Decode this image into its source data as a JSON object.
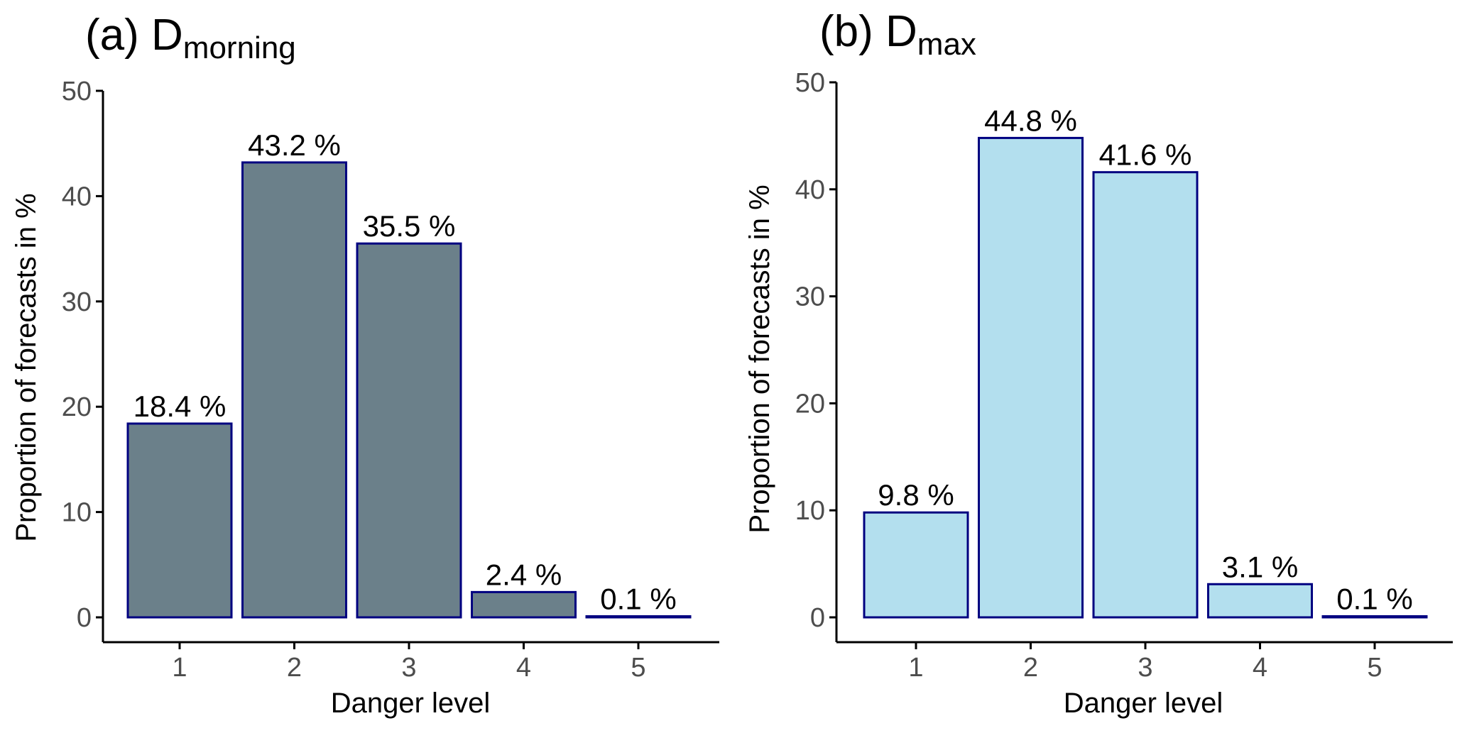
{
  "chart_data": [
    {
      "type": "bar",
      "panel_label": "(a)",
      "title_main": "D",
      "title_sub": "morning",
      "categories": [
        "1",
        "2",
        "3",
        "4",
        "5"
      ],
      "values": [
        18.4,
        43.2,
        35.5,
        2.4,
        0.1
      ],
      "value_labels": [
        "18.4 %",
        "43.2 %",
        "35.5 %",
        "2.4 %",
        "0.1 %"
      ],
      "xlabel": "Danger level",
      "ylabel": "Proportion of forecasts in %",
      "ylim": [
        0,
        50
      ],
      "yticks": [
        "0",
        "10",
        "20",
        "30",
        "40",
        "50"
      ],
      "bar_color": "#6b808a",
      "edge_color": "#000080",
      "grid": false
    },
    {
      "type": "bar",
      "panel_label": "(b)",
      "title_main": "D",
      "title_sub": "max",
      "categories": [
        "1",
        "2",
        "3",
        "4",
        "5"
      ],
      "values": [
        9.8,
        44.8,
        41.6,
        3.1,
        0.1
      ],
      "value_labels": [
        "9.8 %",
        "44.8 %",
        "41.6 %",
        "3.1 %",
        "0.1 %"
      ],
      "xlabel": "Danger level",
      "ylabel": "Proportion of forecasts in %",
      "ylim": [
        0,
        50
      ],
      "yticks": [
        "0",
        "10",
        "20",
        "30",
        "40",
        "50"
      ],
      "bar_color": "#b3dfee",
      "edge_color": "#000080",
      "grid": false
    }
  ]
}
